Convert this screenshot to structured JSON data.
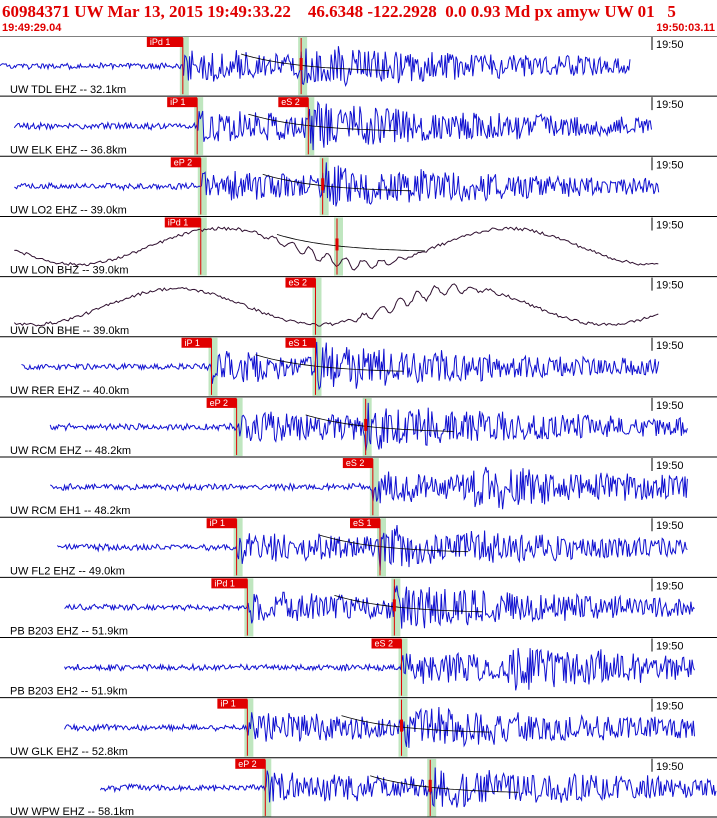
{
  "header": {
    "title": "60984371 UW Mar 13, 2015 19:49:33.22    46.6348 -122.2928  0.0 0.93 Md px amyw UW 01   5",
    "start_time": "19:49:29.04",
    "end_time": "19:50:03.11"
  },
  "colors": {
    "trace": "#1010d0",
    "trace_broadband": "#301030",
    "pick": "#e00000",
    "pick_window": "#bfe6bf",
    "coda_curve": "#000000",
    "header_text": "#e00000",
    "separator": "#000000"
  },
  "channels": [
    {
      "station_label": "UW TDL EHZ -- 32.1km",
      "time_tick": "19:50",
      "broadband": false,
      "picks": [
        {
          "label": "iPd 1",
          "t": 0.255
        },
        {
          "label": "",
          "t": 0.42
        }
      ],
      "signal_start": 0.0,
      "signal_end": 0.88
    },
    {
      "station_label": "UW ELK EHZ -- 36.8km",
      "time_tick": "19:50",
      "broadband": false,
      "picks": [
        {
          "label": "iP 1",
          "t": 0.275
        },
        {
          "label": "eS 2",
          "t": 0.43
        }
      ],
      "signal_start": 0.02,
      "signal_end": 0.91
    },
    {
      "station_label": "UW LO2 EHZ -- 39.0km",
      "time_tick": "19:50",
      "broadband": false,
      "picks": [
        {
          "label": "eP 2",
          "t": 0.28
        },
        {
          "label": "",
          "t": 0.45
        }
      ],
      "signal_start": 0.02,
      "signal_end": 0.92
    },
    {
      "station_label": "UW LON BHZ -- 39.0km",
      "time_tick": "19:50",
      "broadband": true,
      "picks": [
        {
          "label": "iPd 1",
          "t": 0.28
        },
        {
          "label": "",
          "t": 0.47
        }
      ],
      "signal_start": 0.02,
      "signal_end": 0.92
    },
    {
      "station_label": "UW LON BHE -- 39.0km",
      "time_tick": "19:50",
      "broadband": true,
      "picks": [
        {
          "label": "eS 2",
          "t": 0.44
        }
      ],
      "signal_start": 0.02,
      "signal_end": 0.92
    },
    {
      "station_label": "UW RER EHZ -- 40.0km",
      "time_tick": "19:50",
      "broadband": false,
      "picks": [
        {
          "label": "iP 1",
          "t": 0.295
        },
        {
          "label": "eS 1",
          "t": 0.44
        }
      ],
      "signal_start": 0.03,
      "signal_end": 0.92
    },
    {
      "station_label": "UW RCM EHZ -- 48.2km",
      "time_tick": "19:50",
      "broadband": false,
      "picks": [
        {
          "label": "eP 2",
          "t": 0.33
        },
        {
          "label": "",
          "t": 0.51
        }
      ],
      "signal_start": 0.07,
      "signal_end": 0.96
    },
    {
      "station_label": "UW RCM EH1 -- 48.2km",
      "time_tick": "19:50",
      "broadband": false,
      "picks": [
        {
          "label": "eS 2",
          "t": 0.52
        }
      ],
      "signal_start": 0.07,
      "signal_end": 0.96
    },
    {
      "station_label": "UW FL2 EHZ -- 49.0km",
      "time_tick": "19:50",
      "broadband": false,
      "picks": [
        {
          "label": "iP 1",
          "t": 0.33
        },
        {
          "label": "eS 1",
          "t": 0.53
        }
      ],
      "signal_start": 0.08,
      "signal_end": 0.96
    },
    {
      "station_label": "PB B203 EHZ -- 51.9km",
      "time_tick": "19:50",
      "broadband": false,
      "picks": [
        {
          "label": "iPd 1",
          "t": 0.345
        },
        {
          "label": "",
          "t": 0.55
        }
      ],
      "signal_start": 0.09,
      "signal_end": 0.97
    },
    {
      "station_label": "PB B203 EH2 -- 51.9km",
      "time_tick": "19:50",
      "broadband": false,
      "picks": [
        {
          "label": "eS 2",
          "t": 0.56
        }
      ],
      "signal_start": 0.09,
      "signal_end": 0.97
    },
    {
      "station_label": "UW GLK EHZ -- 52.8km",
      "time_tick": "19:50",
      "broadband": false,
      "picks": [
        {
          "label": "iP 1",
          "t": 0.345
        },
        {
          "label": "",
          "t": 0.56
        }
      ],
      "signal_start": 0.09,
      "signal_end": 0.97
    },
    {
      "station_label": "UW WPW EHZ -- 58.1km",
      "time_tick": "19:50",
      "broadband": false,
      "picks": [
        {
          "label": "eP 2",
          "t": 0.37
        },
        {
          "label": "",
          "t": 0.6
        }
      ],
      "signal_start": 0.14,
      "signal_end": 1.0
    }
  ]
}
